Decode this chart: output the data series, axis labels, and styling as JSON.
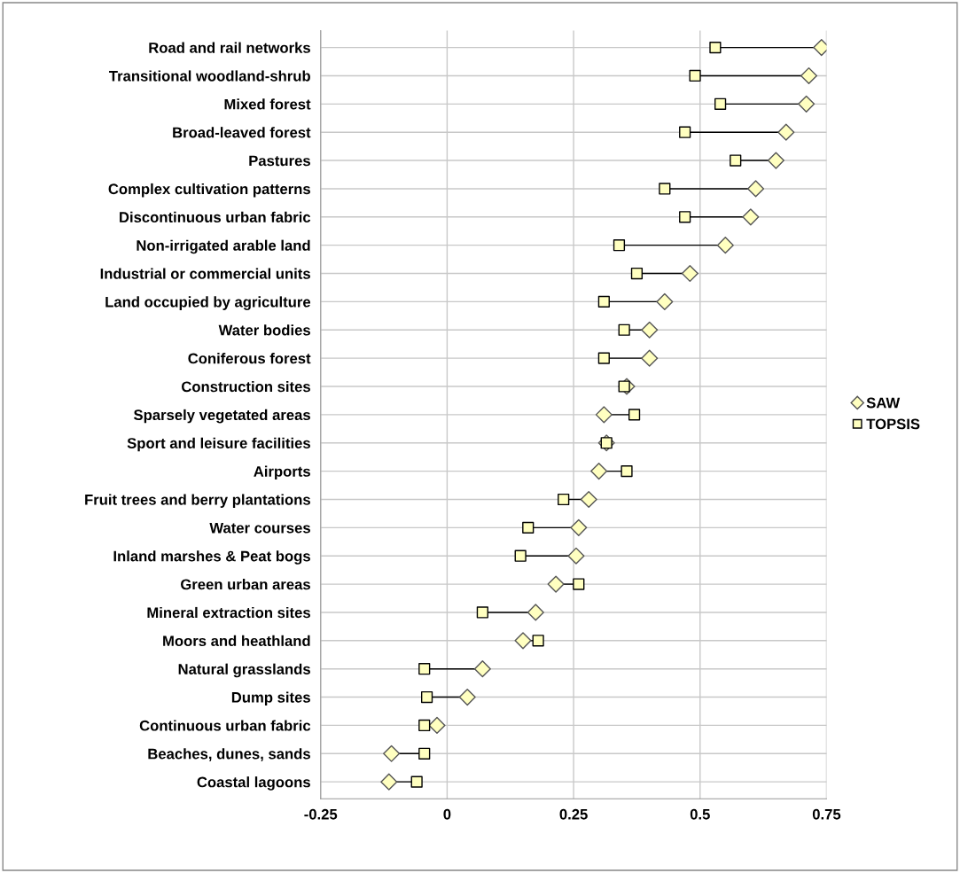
{
  "chart_data": {
    "type": "scatter",
    "orientation": "horizontal",
    "categories": [
      "Road and rail networks",
      "Transitional woodland-shrub",
      "Mixed forest",
      "Broad-leaved forest",
      "Pastures",
      "Complex cultivation patterns",
      "Discontinuous urban fabric",
      "Non-irrigated arable land",
      "Industrial or commercial units",
      "Land occupied by agriculture",
      "Water bodies",
      "Coniferous forest",
      "Construction sites",
      "Sparsely vegetated areas",
      "Sport and leisure facilities",
      "Airports",
      "Fruit trees and berry plantations",
      "Water courses",
      "Inland marshes & Peat bogs",
      "Green urban areas",
      "Mineral extraction sites",
      "Moors and heathland",
      "Natural grasslands",
      "Dump sites",
      "Continuous urban fabric",
      "Beaches, dunes, sands",
      "Coastal lagoons"
    ],
    "series": [
      {
        "name": "SAW",
        "color": "#ffffc0",
        "marker": "diamond",
        "values": [
          0.74,
          0.715,
          0.71,
          0.67,
          0.65,
          0.61,
          0.6,
          0.55,
          0.48,
          0.43,
          0.4,
          0.4,
          0.355,
          0.31,
          0.315,
          0.3,
          0.28,
          0.26,
          0.255,
          0.215,
          0.175,
          0.15,
          0.07,
          0.04,
          -0.02,
          -0.11,
          -0.115
        ]
      },
      {
        "name": "TOPSIS",
        "color": "#ffffc0",
        "marker": "square",
        "values": [
          0.53,
          0.49,
          0.54,
          0.47,
          0.57,
          0.43,
          0.47,
          0.34,
          0.375,
          0.31,
          0.35,
          0.31,
          0.35,
          0.37,
          0.315,
          0.355,
          0.23,
          0.16,
          0.145,
          0.26,
          0.07,
          0.18,
          -0.045,
          -0.04,
          -0.045,
          -0.045,
          -0.06
        ]
      }
    ],
    "xlim": [
      -0.25,
      0.75
    ],
    "xticks": [
      {
        "value": -0.25,
        "label": "-0.25"
      },
      0,
      0.25,
      0.5,
      0.75
    ],
    "grid": true,
    "legend": "right"
  }
}
